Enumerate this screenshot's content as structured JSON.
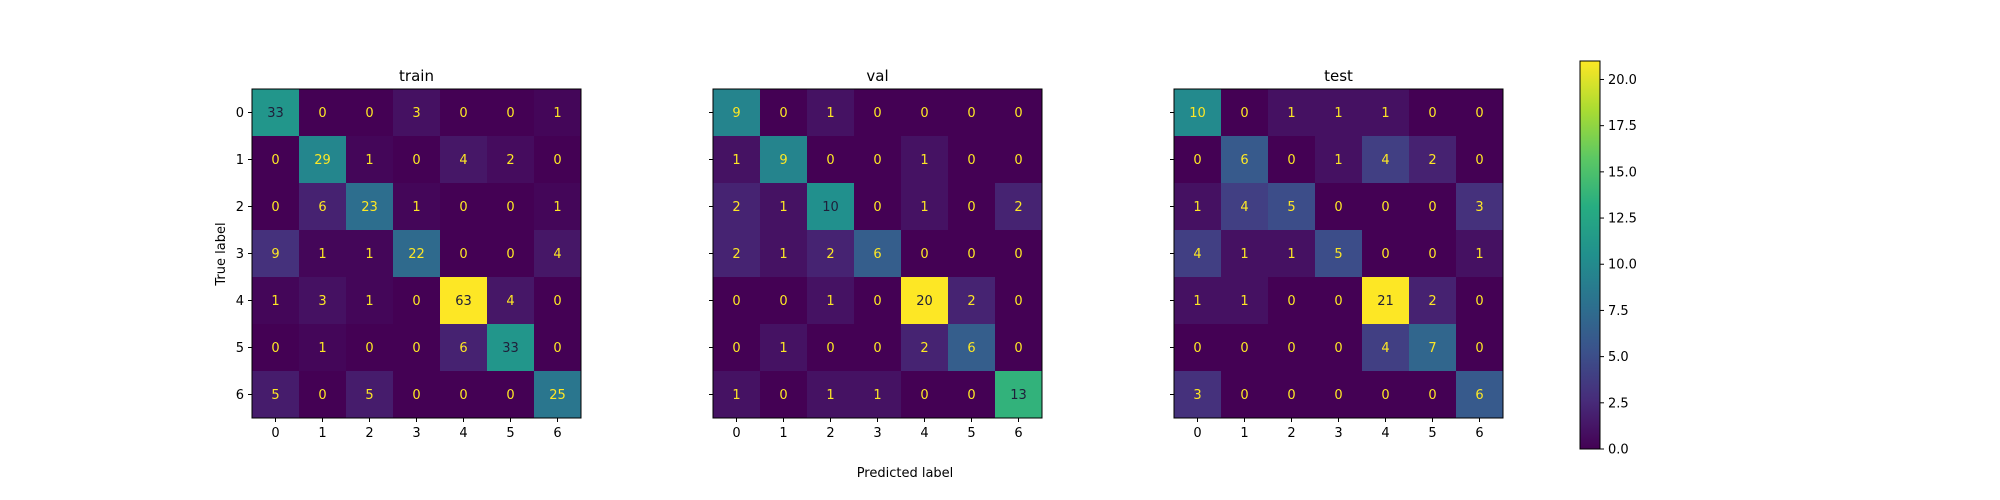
{
  "chart_data": {
    "type": "heatmap",
    "colormap": "viridis",
    "xlabel": "Predicted label",
    "ylabel": "True label",
    "color_scale": {
      "min": 0,
      "max": 21,
      "ticks": [
        "0.0",
        "2.5",
        "5.0",
        "7.5",
        "10.0",
        "12.5",
        "15.0",
        "17.5",
        "20.0"
      ]
    },
    "panels": [
      {
        "title": "train",
        "x_ticks": [
          "0",
          "1",
          "2",
          "3",
          "4",
          "5",
          "6"
        ],
        "y_ticks": [
          "0",
          "1",
          "2",
          "3",
          "4",
          "5",
          "6"
        ],
        "matrix": [
          [
            33,
            0,
            0,
            3,
            0,
            0,
            1
          ],
          [
            0,
            29,
            1,
            0,
            4,
            2,
            0
          ],
          [
            0,
            6,
            23,
            1,
            0,
            0,
            1
          ],
          [
            9,
            1,
            1,
            22,
            0,
            0,
            4
          ],
          [
            1,
            3,
            1,
            0,
            63,
            4,
            0
          ],
          [
            0,
            1,
            0,
            0,
            6,
            33,
            0
          ],
          [
            5,
            0,
            5,
            0,
            0,
            0,
            25
          ]
        ]
      },
      {
        "title": "val",
        "x_ticks": [
          "0",
          "1",
          "2",
          "3",
          "4",
          "5",
          "6"
        ],
        "y_ticks": [
          "0",
          "1",
          "2",
          "3",
          "4",
          "5",
          "6"
        ],
        "matrix": [
          [
            9,
            0,
            1,
            0,
            0,
            0,
            0
          ],
          [
            1,
            9,
            0,
            0,
            1,
            0,
            0
          ],
          [
            2,
            1,
            10,
            0,
            1,
            0,
            2
          ],
          [
            2,
            1,
            2,
            6,
            0,
            0,
            0
          ],
          [
            0,
            0,
            1,
            0,
            20,
            2,
            0
          ],
          [
            0,
            1,
            0,
            0,
            2,
            6,
            0
          ],
          [
            1,
            0,
            1,
            1,
            0,
            0,
            13
          ]
        ]
      },
      {
        "title": "test",
        "x_ticks": [
          "0",
          "1",
          "2",
          "3",
          "4",
          "5",
          "6"
        ],
        "y_ticks": [
          "0",
          "1",
          "2",
          "3",
          "4",
          "5",
          "6"
        ],
        "matrix": [
          [
            10,
            0,
            1,
            1,
            1,
            0,
            0
          ],
          [
            0,
            6,
            0,
            1,
            4,
            2,
            0
          ],
          [
            1,
            4,
            5,
            0,
            0,
            0,
            3
          ],
          [
            4,
            1,
            1,
            5,
            0,
            0,
            1
          ],
          [
            1,
            1,
            0,
            0,
            21,
            2,
            0
          ],
          [
            0,
            0,
            0,
            0,
            4,
            7,
            0
          ],
          [
            3,
            0,
            0,
            0,
            0,
            0,
            6
          ]
        ]
      }
    ]
  }
}
